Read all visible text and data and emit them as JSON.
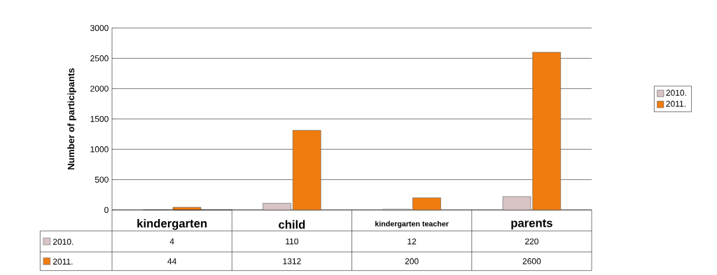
{
  "chart_data": {
    "type": "bar",
    "ylabel": "Number of participants",
    "categories": [
      "kindergarten",
      "child",
      "kindergarten teacher",
      "parents"
    ],
    "series": [
      {
        "name": "2010.",
        "color": "#d8c4c4",
        "values": [
          4,
          110,
          12,
          220
        ]
      },
      {
        "name": "2011.",
        "color": "#f07c10",
        "values": [
          44,
          1312,
          200,
          2600
        ]
      }
    ],
    "ylim": [
      0,
      3000
    ],
    "yticks": [
      0,
      500,
      1000,
      1500,
      2000,
      2500,
      3000
    ],
    "grid": "y",
    "legend": "right",
    "data_labels": true
  }
}
